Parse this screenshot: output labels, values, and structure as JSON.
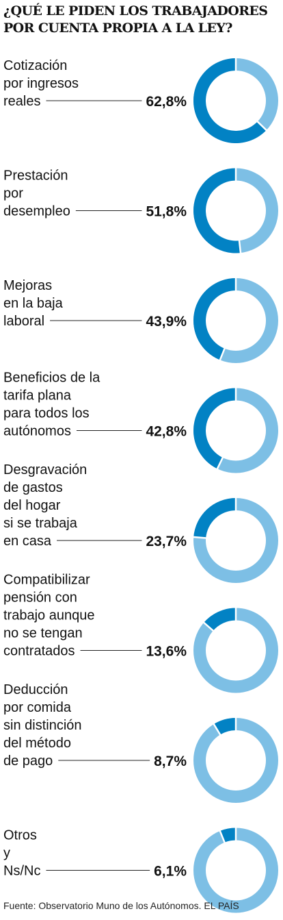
{
  "title_lines": [
    "¿QUÉ LE PIDEN LOS TRABAJADORES",
    "POR CUENTA PROPIA A LA LEY?"
  ],
  "source": "Fuente: Observatorio Muno de los Autónomos.  EL PAÍS",
  "colors": {
    "value": "#0282C4",
    "rest": "#7DBFE5",
    "text": "#111111"
  },
  "chart_data": {
    "type": "donut",
    "title": "¿QUÉ LE PIDEN LOS TRABAJADORES POR CUENTA PROPIA A LA LEY?",
    "unit": "%",
    "items": [
      {
        "label_lines": [
          "Cotización",
          "por ingresos",
          "reales"
        ],
        "value": 62.8,
        "value_text": "62,8%"
      },
      {
        "label_lines": [
          "Prestación",
          "por",
          "desempleo"
        ],
        "value": 51.8,
        "value_text": "51,8%"
      },
      {
        "label_lines": [
          "Mejoras",
          "en la baja",
          "laboral"
        ],
        "value": 43.9,
        "value_text": "43,9%"
      },
      {
        "label_lines": [
          "Beneficios de la",
          "tarifa plana",
          "para todos los",
          "autónomos"
        ],
        "value": 42.8,
        "value_text": "42,8%"
      },
      {
        "label_lines": [
          "Desgravación",
          "de gastos",
          "del hogar",
          "si se trabaja",
          "en casa"
        ],
        "value": 23.7,
        "value_text": "23,7%"
      },
      {
        "label_lines": [
          "Compatibilizar",
          "pensión con",
          "trabajo aunque",
          "no se tengan",
          "contratados"
        ],
        "value": 13.6,
        "value_text": "13,6%"
      },
      {
        "label_lines": [
          "Deducción",
          "por comida",
          "sin distinción",
          "del método",
          "de pago"
        ],
        "value": 8.7,
        "value_text": "8,7%"
      },
      {
        "label_lines": [
          "Otros",
          "y",
          "Ns/Nc"
        ],
        "value": 6.1,
        "value_text": "6,1%"
      }
    ]
  }
}
